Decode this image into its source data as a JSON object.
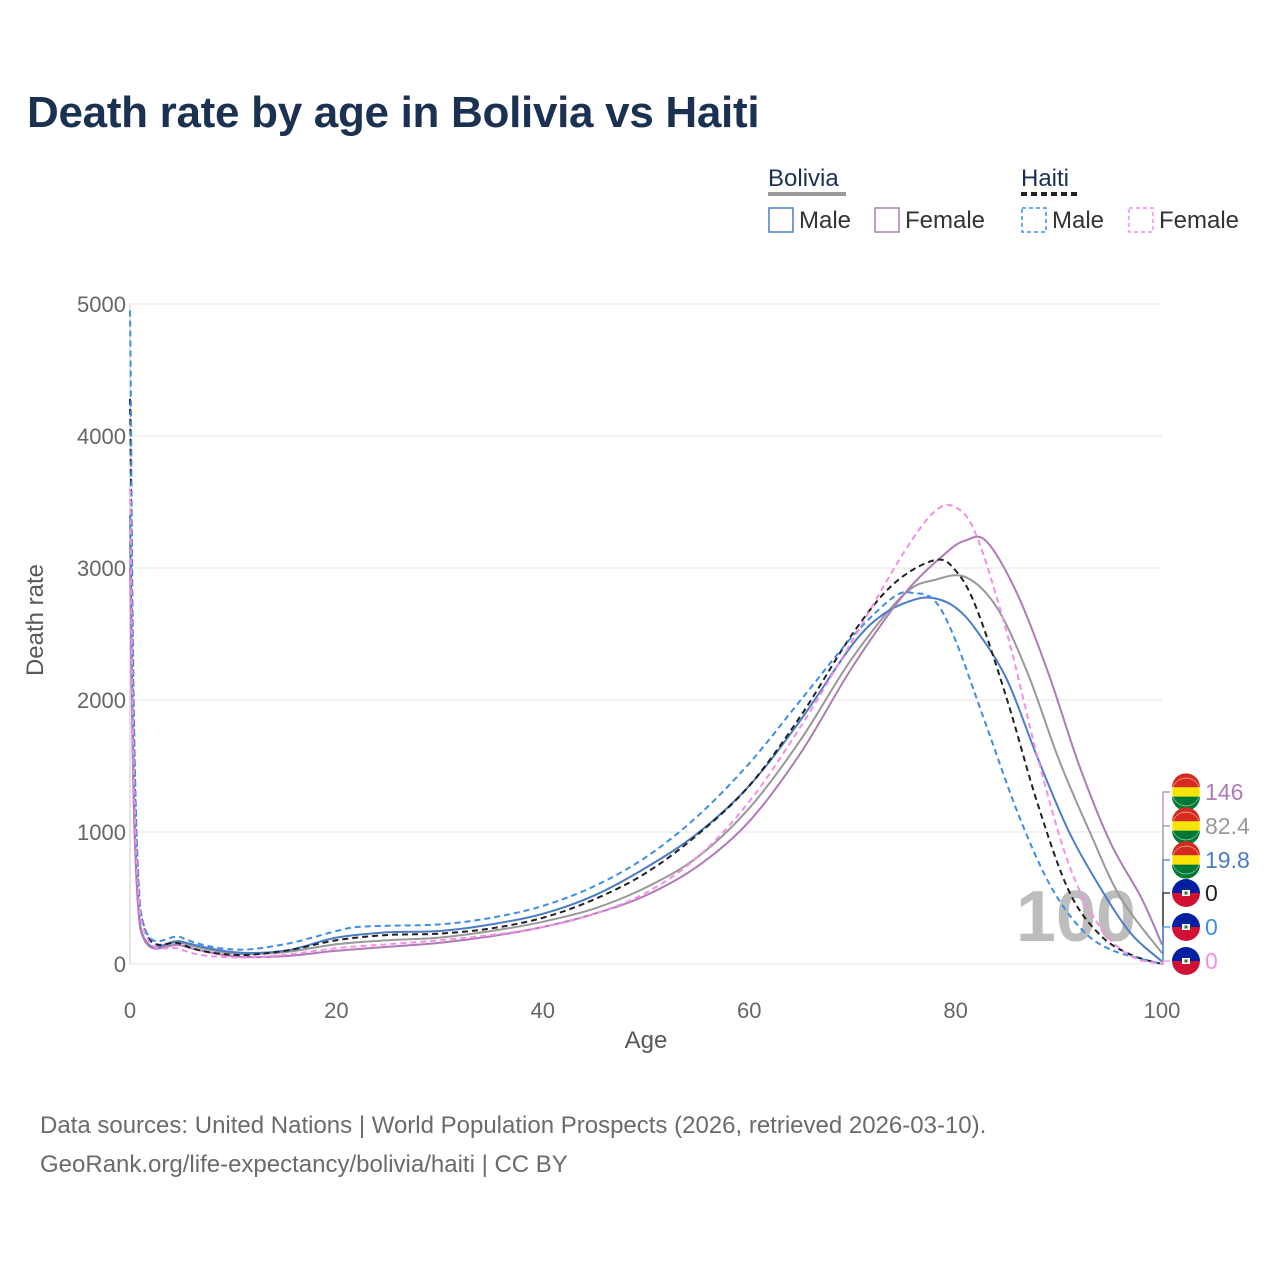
{
  "title": "Death rate by age in Bolivia vs Haiti",
  "footer": {
    "line1": "Data sources: United Nations | World Population Prospects (2026, retrieved 2026-03-10).",
    "line2": "GeoRank.org/life-expectancy/bolivia/haiti | CC BY"
  },
  "legend": {
    "bolivia": {
      "heading": "Bolivia",
      "male": "Male",
      "female": "Female"
    },
    "haiti": {
      "heading": "Haiti",
      "male": "Male",
      "female": "Female"
    }
  },
  "colors": {
    "bolivia_male": "#4a7cc7",
    "bolivia_female": "#b07ab8",
    "bolivia_total": "#999999",
    "haiti_male": "#3d8ee8",
    "haiti_female": "#f58ee8",
    "haiti_total": "#222222"
  },
  "watermark": "100",
  "chart_data": {
    "type": "line",
    "title": "Death rate by age in Bolivia vs Haiti",
    "xlabel": "Age",
    "ylabel": "Death rate",
    "xlim": [
      0,
      100
    ],
    "ylim": [
      0,
      5000
    ],
    "xticks": [
      0,
      20,
      40,
      60,
      80,
      100
    ],
    "yticks": [
      0,
      1000,
      2000,
      3000,
      4000,
      5000
    ],
    "grid": true,
    "legend_position": "top-right",
    "series": [
      {
        "key": "bolivia_total",
        "name": "Bolivia",
        "style": "solid",
        "x": [
          0,
          1,
          5,
          10,
          15,
          20,
          25,
          30,
          35,
          40,
          45,
          50,
          55,
          60,
          65,
          70,
          75,
          78,
          81,
          84,
          87,
          90,
          93,
          96,
          100
        ],
        "y": [
          3200,
          280,
          160,
          80,
          90,
          150,
          180,
          200,
          250,
          320,
          420,
          580,
          810,
          1180,
          1700,
          2320,
          2800,
          2910,
          2930,
          2700,
          2200,
          1550,
          1000,
          500,
          82.4
        ]
      },
      {
        "key": "bolivia_male",
        "name": "Bolivia Male",
        "style": "solid",
        "x": [
          0,
          1,
          5,
          10,
          15,
          20,
          25,
          30,
          35,
          40,
          45,
          50,
          55,
          60,
          65,
          70,
          73,
          76,
          78,
          80,
          82,
          85,
          88,
          91,
          94,
          97,
          100
        ],
        "y": [
          3400,
          280,
          170,
          90,
          100,
          200,
          240,
          250,
          300,
          380,
          520,
          730,
          990,
          1350,
          1850,
          2420,
          2650,
          2760,
          2770,
          2700,
          2530,
          2150,
          1550,
          1000,
          580,
          230,
          19.8
        ]
      },
      {
        "key": "bolivia_female",
        "name": "Bolivia Female",
        "style": "solid",
        "x": [
          0,
          1,
          5,
          10,
          15,
          20,
          25,
          30,
          35,
          40,
          45,
          50,
          55,
          60,
          65,
          70,
          75,
          79,
          81,
          83,
          86,
          89,
          92,
          95,
          98,
          100
        ],
        "y": [
          3000,
          270,
          140,
          60,
          60,
          100,
          130,
          160,
          210,
          280,
          380,
          520,
          740,
          1080,
          1600,
          2250,
          2800,
          3110,
          3210,
          3200,
          2800,
          2200,
          1500,
          920,
          500,
          146
        ]
      },
      {
        "key": "haiti_total",
        "name": "Haiti",
        "style": "dash",
        "x": [
          0,
          1,
          5,
          10,
          15,
          20,
          25,
          30,
          35,
          40,
          45,
          50,
          55,
          60,
          65,
          70,
          74,
          78,
          80,
          82,
          85,
          88,
          91,
          94,
          97,
          100
        ],
        "y": [
          4280,
          400,
          150,
          70,
          100,
          180,
          220,
          230,
          270,
          350,
          490,
          690,
          980,
          1350,
          1880,
          2500,
          2880,
          3060,
          2980,
          2700,
          2000,
          1200,
          550,
          220,
          70,
          0
        ]
      },
      {
        "key": "haiti_male",
        "name": "Haiti Male",
        "style": "dash",
        "x": [
          0,
          1,
          5,
          10,
          15,
          20,
          22,
          25,
          30,
          35,
          40,
          45,
          50,
          55,
          60,
          65,
          70,
          74,
          76,
          78,
          80,
          83,
          86,
          89,
          92,
          95,
          100
        ],
        "y": [
          4950,
          420,
          200,
          110,
          150,
          250,
          280,
          290,
          300,
          350,
          440,
          590,
          810,
          1120,
          1520,
          2000,
          2480,
          2780,
          2810,
          2750,
          2450,
          1800,
          1150,
          620,
          280,
          110,
          0
        ]
      },
      {
        "key": "haiti_female",
        "name": "Haiti Female",
        "style": "dash",
        "x": [
          0,
          1,
          5,
          10,
          15,
          20,
          25,
          30,
          35,
          40,
          45,
          50,
          55,
          60,
          65,
          70,
          75,
          78,
          80,
          82,
          85,
          88,
          91,
          94,
          97,
          100
        ],
        "y": [
          3600,
          370,
          110,
          50,
          70,
          120,
          150,
          180,
          220,
          280,
          380,
          540,
          810,
          1230,
          1800,
          2450,
          3120,
          3430,
          3460,
          3250,
          2500,
          1550,
          750,
          280,
          60,
          0
        ]
      }
    ],
    "end_labels": [
      {
        "country": "Bolivia",
        "value": "146",
        "color_key": "bolivia_female"
      },
      {
        "country": "Bolivia",
        "value": "82.4",
        "color_key": "bolivia_total"
      },
      {
        "country": "Bolivia",
        "value": "19.8",
        "color_key": "bolivia_male"
      },
      {
        "country": "Haiti",
        "value": "0",
        "color_key": "haiti_total"
      },
      {
        "country": "Haiti",
        "value": "0",
        "color_key": "haiti_male"
      },
      {
        "country": "Haiti",
        "value": "0",
        "color_key": "haiti_female"
      }
    ]
  }
}
